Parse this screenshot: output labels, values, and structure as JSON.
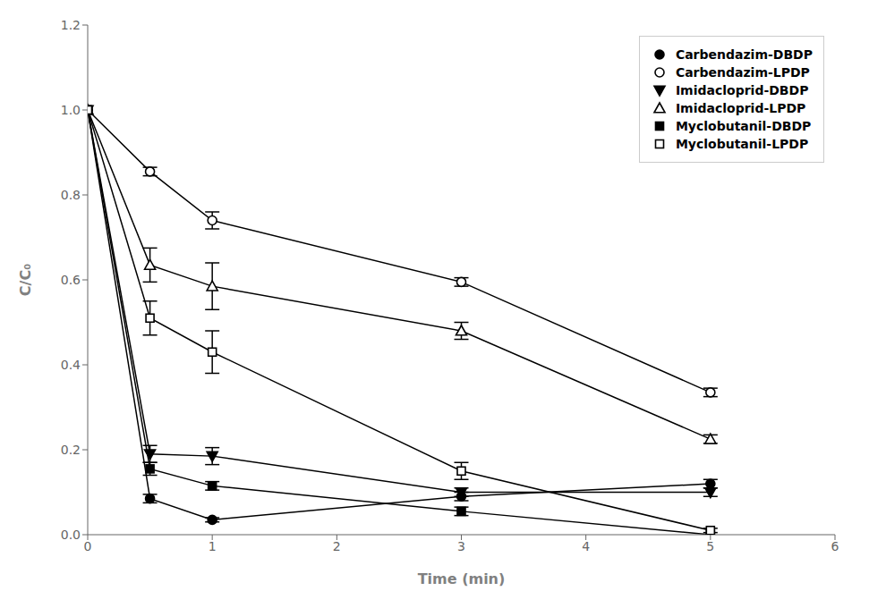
{
  "chart_data": {
    "type": "line",
    "x_label": "Time (min)",
    "y_label": "C/C₀",
    "x": [
      0,
      0.5,
      1,
      3,
      5
    ],
    "xlim": [
      0,
      6
    ],
    "ylim": [
      0,
      1.2
    ],
    "xticks": [
      0,
      1,
      2,
      3,
      4,
      5,
      6
    ],
    "yticks": [
      {
        "value": 0,
        "label": "0.0"
      },
      0.2,
      0.4,
      0.6,
      0.8,
      {
        "value": 1,
        "label": "1.0"
      },
      1.2
    ],
    "color": "#000000",
    "grid": false,
    "legend": "upper right",
    "series": [
      {
        "name": "Carbendazim-DBDP",
        "values": [
          1.0,
          0.085,
          0.035,
          0.09,
          0.12
        ],
        "yerr": [
          0.0,
          0.01,
          0.005,
          0.01,
          0.01
        ],
        "marker": "circle"
      },
      {
        "name": "Carbendazim-LPDP",
        "values": [
          1.0,
          0.855,
          0.74,
          0.595,
          0.335
        ],
        "yerr": [
          0.0,
          0.01,
          0.02,
          0.01,
          0.01
        ],
        "marker": "circle-open"
      },
      {
        "name": "Imidacloprid-DBDP",
        "values": [
          1.0,
          0.19,
          0.185,
          0.1,
          0.1
        ],
        "yerr": [
          0.0,
          0.02,
          0.02,
          0.01,
          0.01
        ],
        "marker": "triangle-down"
      },
      {
        "name": "Imidacloprid-LPDP",
        "values": [
          1.0,
          0.635,
          0.585,
          0.48,
          0.225
        ],
        "yerr": [
          0.0,
          0.04,
          0.055,
          0.02,
          0.01
        ],
        "marker": "triangle-up-open"
      },
      {
        "name": "Myclobutanil-DBDP",
        "values": [
          1.0,
          0.155,
          0.115,
          0.055,
          0.0
        ],
        "yerr": [
          0.0,
          0.015,
          0.01,
          0.01,
          0.0
        ],
        "marker": "square"
      },
      {
        "name": "Myclobutanil-LPDP",
        "values": [
          1.0,
          0.51,
          0.43,
          0.15,
          0.01
        ],
        "yerr": [
          0.0,
          0.04,
          0.05,
          0.02,
          0.005
        ],
        "marker": "square-open"
      }
    ]
  }
}
